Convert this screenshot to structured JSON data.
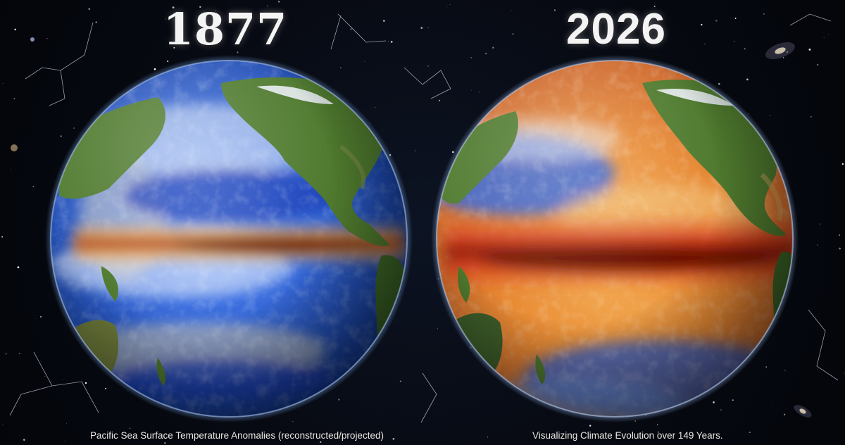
{
  "panels": [
    {
      "year": "1877",
      "caption": "Pacific Sea Surface Temperature Anomalies (reconstructed/projected)"
    },
    {
      "year": "2026",
      "caption": "Visualizing Climate Evolution over 149 Years."
    }
  ],
  "colors": {
    "space": "#05070d",
    "cool_anomaly": "#1e4fd0",
    "warm_anomaly": "#e05a14",
    "hot_core": "#8a1206",
    "land": "#4f7a2e"
  },
  "icons": {
    "background": "starfield-with-constellations",
    "left_globe": "globe-pacific-1877",
    "right_globe": "globe-pacific-2026"
  }
}
